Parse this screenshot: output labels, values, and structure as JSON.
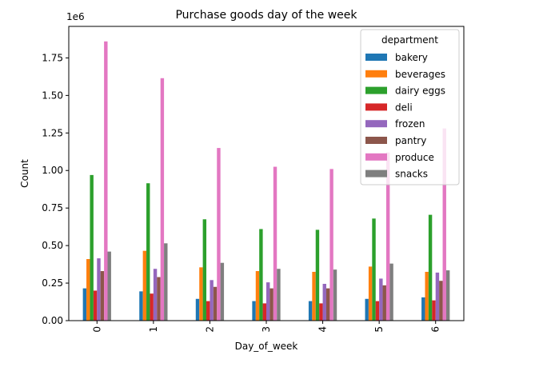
{
  "chart_data": {
    "type": "bar",
    "title": "Purchase goods day of the week",
    "xlabel": "Day_of_week",
    "ylabel": "Count",
    "y_offset_label": "1e6",
    "categories": [
      "0",
      "1",
      "2",
      "3",
      "4",
      "5",
      "6"
    ],
    "ylim": [
      0,
      1.96
    ],
    "yticks": [
      0.0,
      0.25,
      0.5,
      0.75,
      1.0,
      1.25,
      1.5,
      1.75
    ],
    "ytick_labels": [
      "0.00",
      "0.25",
      "0.50",
      "0.75",
      "1.00",
      "1.25",
      "1.50",
      "1.75"
    ],
    "legend": {
      "title": "department",
      "placement": "top-right"
    },
    "grid": false,
    "series": [
      {
        "name": "bakery",
        "color": "#1f77b4",
        "values": [
          0.215,
          0.195,
          0.145,
          0.13,
          0.13,
          0.145,
          0.155
        ]
      },
      {
        "name": "beverages",
        "color": "#ff7f0e",
        "values": [
          0.41,
          0.465,
          0.355,
          0.33,
          0.325,
          0.36,
          0.325
        ]
      },
      {
        "name": "dairy eggs",
        "color": "#2ca02c",
        "values": [
          0.97,
          0.915,
          0.675,
          0.61,
          0.605,
          0.68,
          0.705
        ]
      },
      {
        "name": "deli",
        "color": "#d62728",
        "values": [
          0.2,
          0.18,
          0.13,
          0.115,
          0.115,
          0.13,
          0.135
        ]
      },
      {
        "name": "frozen",
        "color": "#9467bd",
        "values": [
          0.415,
          0.345,
          0.27,
          0.255,
          0.245,
          0.28,
          0.32
        ]
      },
      {
        "name": "pantry",
        "color": "#8c564b",
        "values": [
          0.33,
          0.29,
          0.225,
          0.215,
          0.215,
          0.235,
          0.265
        ]
      },
      {
        "name": "produce",
        "color": "#e377c2",
        "values": [
          1.86,
          1.615,
          1.15,
          1.025,
          1.01,
          1.12,
          1.28
        ]
      },
      {
        "name": "snacks",
        "color": "#7f7f7f",
        "values": [
          0.46,
          0.515,
          0.385,
          0.345,
          0.34,
          0.38,
          0.335
        ]
      }
    ]
  }
}
